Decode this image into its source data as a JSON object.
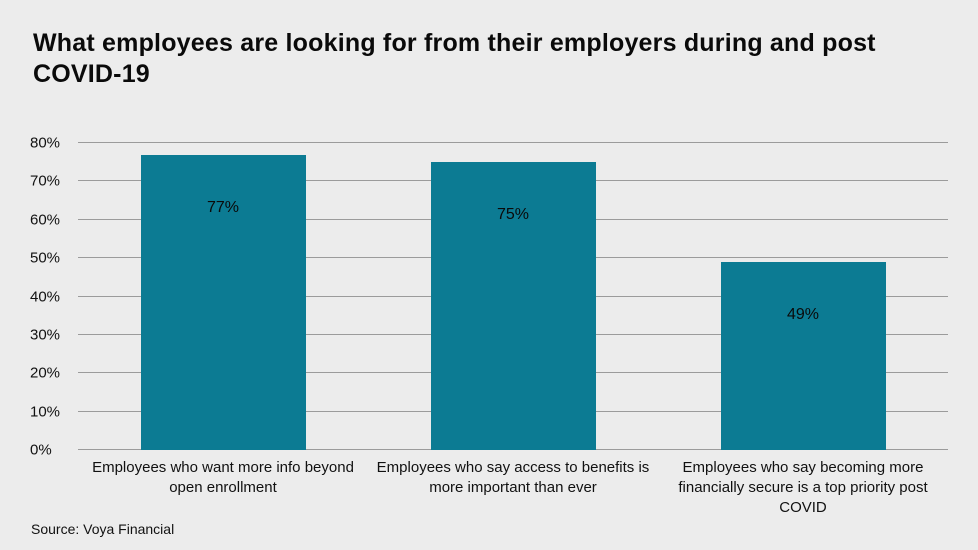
{
  "header": {
    "title": "What employees are looking for from their employers during and post COVID-19"
  },
  "source": "Source: Voya Financial",
  "chart_data": {
    "type": "bar",
    "title": "What employees are looking for from their employers during and post COVID-19",
    "categories": [
      "Employees who want more info beyond open enrollment",
      "Employees who say access to benefits is more important than ever",
      "Employees who say becoming more financially secure is a top priority post COVID"
    ],
    "values": [
      77,
      75,
      49
    ],
    "value_labels": [
      "77%",
      "75%",
      "49%"
    ],
    "xlabel": "",
    "ylabel": "",
    "ylim": [
      0,
      80
    ],
    "yticks": [
      0,
      10,
      20,
      30,
      40,
      50,
      60,
      70,
      80
    ],
    "ytick_suffix": "%",
    "grid": true,
    "legend": false,
    "bar_color": "#0c7b93",
    "background_color": "#ececec",
    "gridline_color": "#9b9b9b",
    "source": "Source: Voya Financial"
  }
}
